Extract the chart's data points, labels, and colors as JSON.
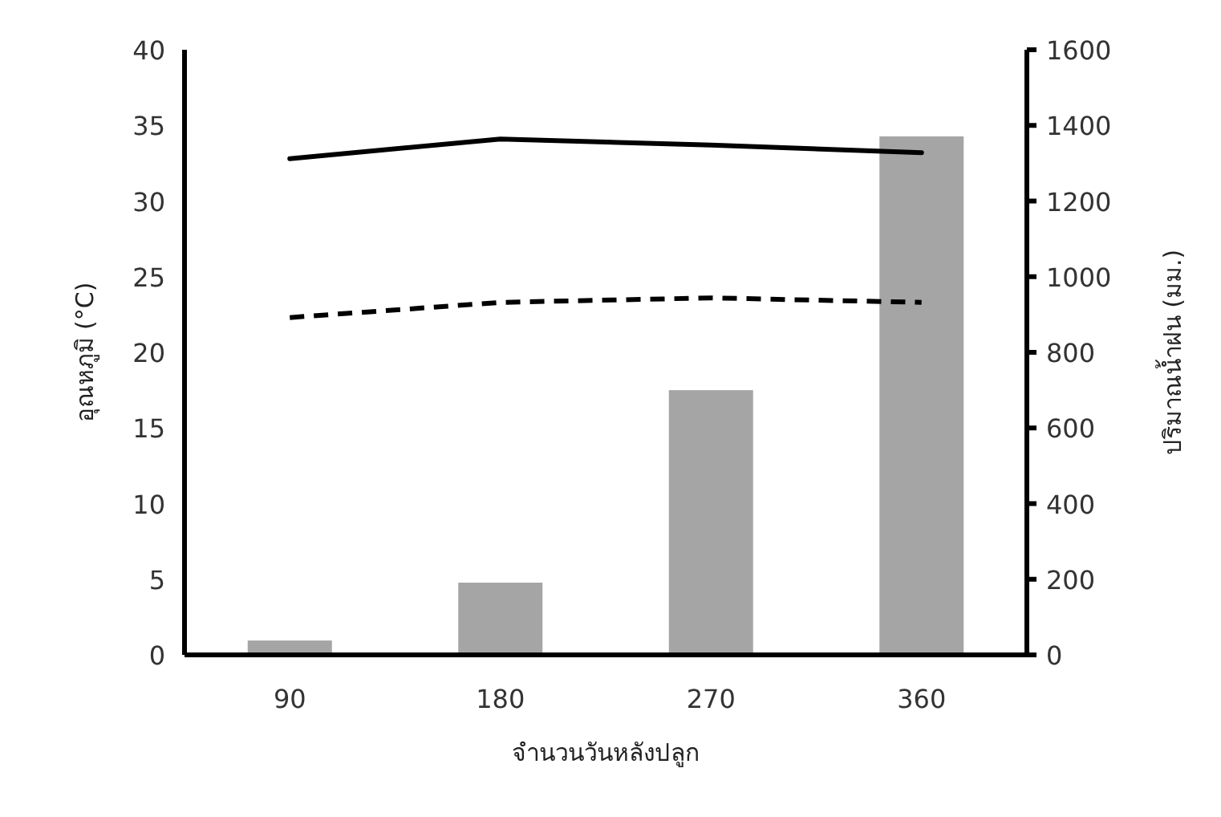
{
  "chart_data": {
    "type": "bar",
    "categories": [
      "90",
      "180",
      "270",
      "360"
    ],
    "xlabel": "จำนวนวันหลังปลูก",
    "ylabel": "อุณหภูมิ (°C)",
    "y2label": "ปริมาณน้ำฝน (มม.)",
    "ylim": [
      0,
      40
    ],
    "yticks": [
      0,
      5,
      10,
      15,
      20,
      25,
      30,
      35,
      40
    ],
    "y2lim": [
      0,
      1600
    ],
    "y2ticks": [
      0,
      200,
      400,
      600,
      800,
      1000,
      1200,
      1400,
      1600
    ],
    "series": [
      {
        "axis": "y2",
        "color": "#a5a5a5",
        "values": [
          38,
          191,
          700,
          1371
        ]
      },
      {
        "type": "line",
        "axis": "y",
        "color": "#000000",
        "line_style": "solid",
        "values": [
          32.8,
          34.1,
          33.7,
          33.2
        ]
      },
      {
        "type": "line",
        "axis": "y",
        "color": "#000000",
        "line_style": "dashed",
        "values": [
          22.3,
          23.3,
          23.6,
          23.3
        ]
      }
    ]
  }
}
